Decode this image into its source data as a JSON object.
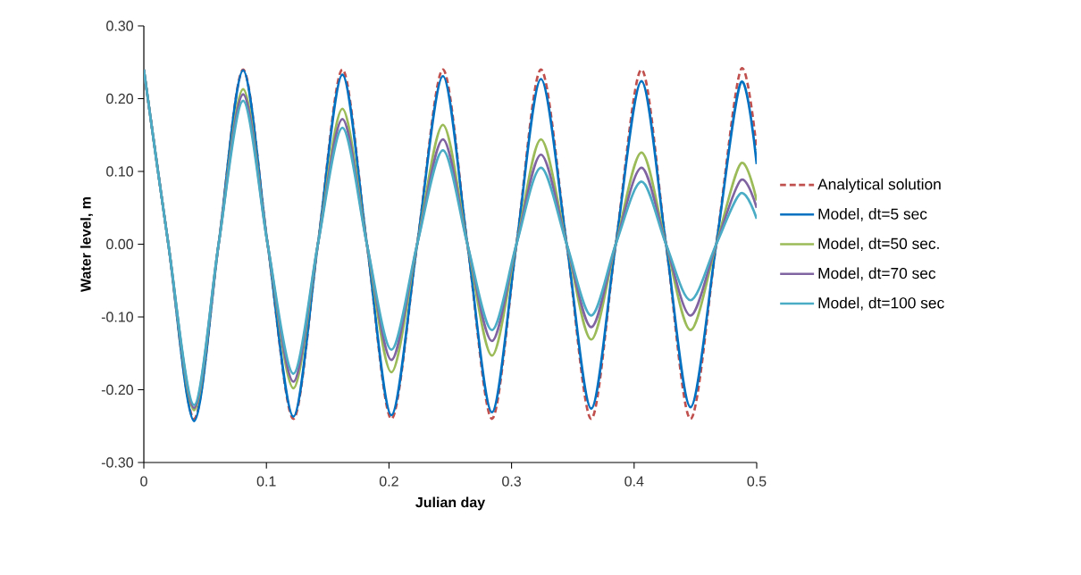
{
  "chart_data": {
    "type": "line",
    "xlabel": "Julian day",
    "ylabel": "Water level, m",
    "x": [
      0,
      0.02,
      0.041,
      0.061,
      0.081,
      0.101,
      0.122,
      0.142,
      0.162,
      0.182,
      0.202,
      0.223,
      0.244,
      0.264,
      0.284,
      0.304,
      0.324,
      0.345,
      0.365,
      0.385,
      0.406,
      0.426,
      0.446,
      0.467,
      0.487,
      0.5
    ],
    "series": [
      {
        "name": "Analytical solution",
        "color": "#c0504d",
        "line_style": "dashed",
        "values": [
          0.24,
          0,
          -0.24,
          0,
          0.24,
          0,
          -0.24,
          0,
          0.24,
          0,
          -0.24,
          0,
          0.24,
          0,
          -0.24,
          0,
          0.24,
          0,
          -0.24,
          0,
          0.24,
          0,
          -0.24,
          0,
          0.24,
          0.13
        ]
      },
      {
        "name": "Model, dt=5 sec",
        "color": "#0070c0",
        "values": [
          0.24,
          0,
          -0.243,
          0,
          0.239,
          0,
          -0.237,
          0,
          0.233,
          0,
          -0.235,
          0,
          0.231,
          0,
          -0.231,
          0,
          0.227,
          0,
          -0.226,
          0,
          0.224,
          0,
          -0.224,
          0,
          0.222,
          0.11
        ]
      },
      {
        "name": "Model, dt=50 sec.",
        "color": "#9bbb59",
        "values": [
          0.24,
          0,
          -0.228,
          0,
          0.213,
          0,
          -0.198,
          0,
          0.186,
          0,
          -0.176,
          0,
          0.164,
          0,
          -0.153,
          0,
          0.144,
          0,
          -0.131,
          0,
          0.126,
          0,
          -0.118,
          0,
          0.111,
          0.06
        ]
      },
      {
        "name": "Model, dt=70 sec",
        "color": "#8064a2",
        "values": [
          0.24,
          0,
          -0.225,
          0,
          0.206,
          0,
          -0.189,
          0,
          0.172,
          0,
          -0.159,
          0,
          0.144,
          0,
          -0.133,
          0,
          0.123,
          0,
          -0.114,
          0,
          0.105,
          0,
          -0.098,
          0,
          0.088,
          0.05
        ]
      },
      {
        "name": "Model, dt=100 sec",
        "color": "#4bacc6",
        "values": [
          0.24,
          0,
          -0.221,
          0,
          0.197,
          0,
          -0.178,
          0,
          0.16,
          0,
          -0.145,
          0,
          0.129,
          0,
          -0.118,
          0,
          0.105,
          0,
          -0.098,
          0,
          0.086,
          0,
          -0.077,
          0,
          0.07,
          0.035
        ]
      }
    ],
    "xlim": [
      0,
      0.5
    ],
    "xticks": [
      0,
      0.1,
      0.2,
      0.3,
      0.4,
      0.5
    ],
    "ylim": [
      -0.3,
      0.3
    ],
    "yticks": [
      {
        "value": -0.3,
        "label": "-0.30"
      },
      {
        "value": -0.2,
        "label": "-0.20"
      },
      {
        "value": -0.1,
        "label": "-0.10"
      },
      {
        "value": 0,
        "label": "0.00"
      },
      {
        "value": 0.1,
        "label": "0.10"
      },
      {
        "value": 0.2,
        "label": "0.20"
      },
      {
        "value": 0.3,
        "label": "0.30"
      }
    ],
    "grid": false,
    "legend": "right",
    "marker": "none",
    "line_style": "solid"
  }
}
